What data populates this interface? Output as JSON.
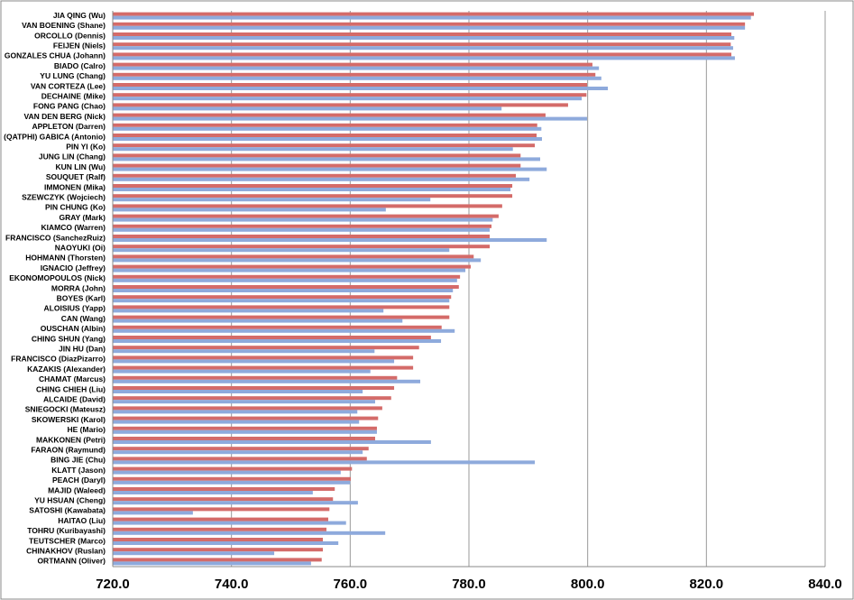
{
  "chart_data": {
    "type": "barh",
    "categories": [
      "JIA QING (Wu)",
      "VAN BOENING (Shane)",
      "ORCOLLO (Dennis)",
      "FEIJEN (Niels)",
      "GONZALES CHUA (Johann)",
      "BIADO (Calro)",
      "YU LUNG (Chang)",
      "VAN CORTEZA (Lee)",
      "DECHAINE (Mike)",
      "FONG PANG (Chao)",
      "VAN DEN BERG (Nick)",
      "APPLETON (Darren)",
      "(QATPHI) GABICA (Antonio)",
      "PIN YI (Ko)",
      "JUNG LIN (Chang)",
      "KUN LIN (Wu)",
      "SOUQUET (Ralf)",
      "IMMONEN (Mika)",
      "SZEWCZYK (Wojciech)",
      "PIN CHUNG (Ko)",
      "GRAY (Mark)",
      "KIAMCO (Warren)",
      "FRANCISCO (SanchezRuiz)",
      "NAOYUKI (Oi)",
      "HOHMANN (Thorsten)",
      "IGNACIO (Jeffrey)",
      "EKONOMOPOULOS (Nick)",
      "MORRA (John)",
      "BOYES (Karl)",
      "ALOISIUS (Yapp)",
      "CAN (Wang)",
      "OUSCHAN (Albin)",
      "CHING SHUN (Yang)",
      "JIN HU (Dan)",
      "FRANCISCO (DiazPizarro)",
      "KAZAKIS (Alexander)",
      "CHAMAT (Marcus)",
      "CHING CHIEH (Liu)",
      "ALCAIDE (David)",
      "SNIEGOCKI (Mateusz)",
      "SKOWERSKI (Karol)",
      "HE (Mario)",
      "MAKKONEN (Petri)",
      "FARAON (Raymund)",
      "BING JIE (Chu)",
      "KLATT (Jason)",
      "PEACH (Daryl)",
      "MAJID (Waleed)",
      "YU HSUAN (Cheng)",
      "SATOSHI (Kawabata)",
      "HAITAO (Liu)",
      "TOHRU (Kuribayashi)",
      "TEUTSCHER (Marco)",
      "CHINAKHOV (Ruslan)",
      "ORTMANN (Oliver)"
    ],
    "series": [
      {
        "color": "#d46b69",
        "values": [
          828.0,
          826.5,
          824.2,
          824.1,
          824.2,
          800.8,
          801.3,
          799.9,
          799.8,
          796.7,
          792.9,
          791.5,
          791.4,
          791.1,
          788.7,
          788.7,
          787.9,
          787.3,
          787.3,
          785.6,
          785.0,
          783.8,
          783.5,
          783.5,
          780.8,
          780.3,
          778.5,
          778.3,
          777.0,
          776.7,
          776.7,
          775.4,
          773.6,
          771.6,
          770.6,
          770.6,
          767.9,
          767.4,
          766.9,
          765.4,
          764.7,
          764.5,
          764.2,
          763.1,
          762.8,
          760.3,
          760.1,
          757.4,
          757.1,
          756.5,
          756.3,
          756.0,
          755.4,
          755.4,
          755.2
        ]
      },
      {
        "color": "#8eaadc",
        "values": [
          827.5,
          826.5,
          824.7,
          824.5,
          824.8,
          801.9,
          802.3,
          803.4,
          799.0,
          785.5,
          799.9,
          792.2,
          792.3,
          787.4,
          792.0,
          793.1,
          790.2,
          787.0,
          773.5,
          766.0,
          784.0,
          783.5,
          793.1,
          776.7,
          782.0,
          779.4,
          778.0,
          777.3,
          776.7,
          765.6,
          768.8,
          777.6,
          775.3,
          764.1,
          767.4,
          763.4,
          771.8,
          762.1,
          764.2,
          761.2,
          761.5,
          764.5,
          773.6,
          762.1,
          791.1,
          758.4,
          760.0,
          753.7,
          761.3,
          733.5,
          759.3,
          765.9,
          758.0,
          747.2,
          753.4
        ]
      }
    ],
    "xlim": [
      720,
      840
    ],
    "xticks": [
      {
        "value": 720,
        "label": "720.0"
      },
      {
        "value": 740,
        "label": "740.0"
      },
      {
        "value": 760,
        "label": "760.0"
      },
      {
        "value": 780,
        "label": "780.0"
      },
      {
        "value": 800,
        "label": "800.0"
      },
      {
        "value": 820,
        "label": "820.0"
      },
      {
        "value": 840,
        "label": "840.0"
      }
    ],
    "grid": true
  }
}
